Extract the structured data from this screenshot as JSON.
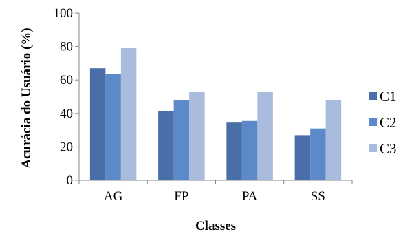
{
  "chart_data": {
    "type": "bar",
    "title": "",
    "xlabel": "Classes",
    "ylabel": "Acurácia do Usuário (%)",
    "categories": [
      "AG",
      "FP",
      "PA",
      "SS"
    ],
    "ylim": [
      0,
      100
    ],
    "yticks": [
      "0",
      "20",
      "40",
      "60",
      "80",
      "100"
    ],
    "grid": false,
    "legend_position": "right",
    "series": [
      {
        "name": "C1",
        "color": "#4a6ea8",
        "values": [
          67,
          41.5,
          34.5,
          27
        ]
      },
      {
        "name": "C2",
        "color": "#5b89c9",
        "values": [
          63.5,
          48,
          35.5,
          31
        ]
      },
      {
        "name": "C3",
        "color": "#a9bcdd",
        "values": [
          79,
          53,
          53,
          48
        ]
      }
    ]
  }
}
